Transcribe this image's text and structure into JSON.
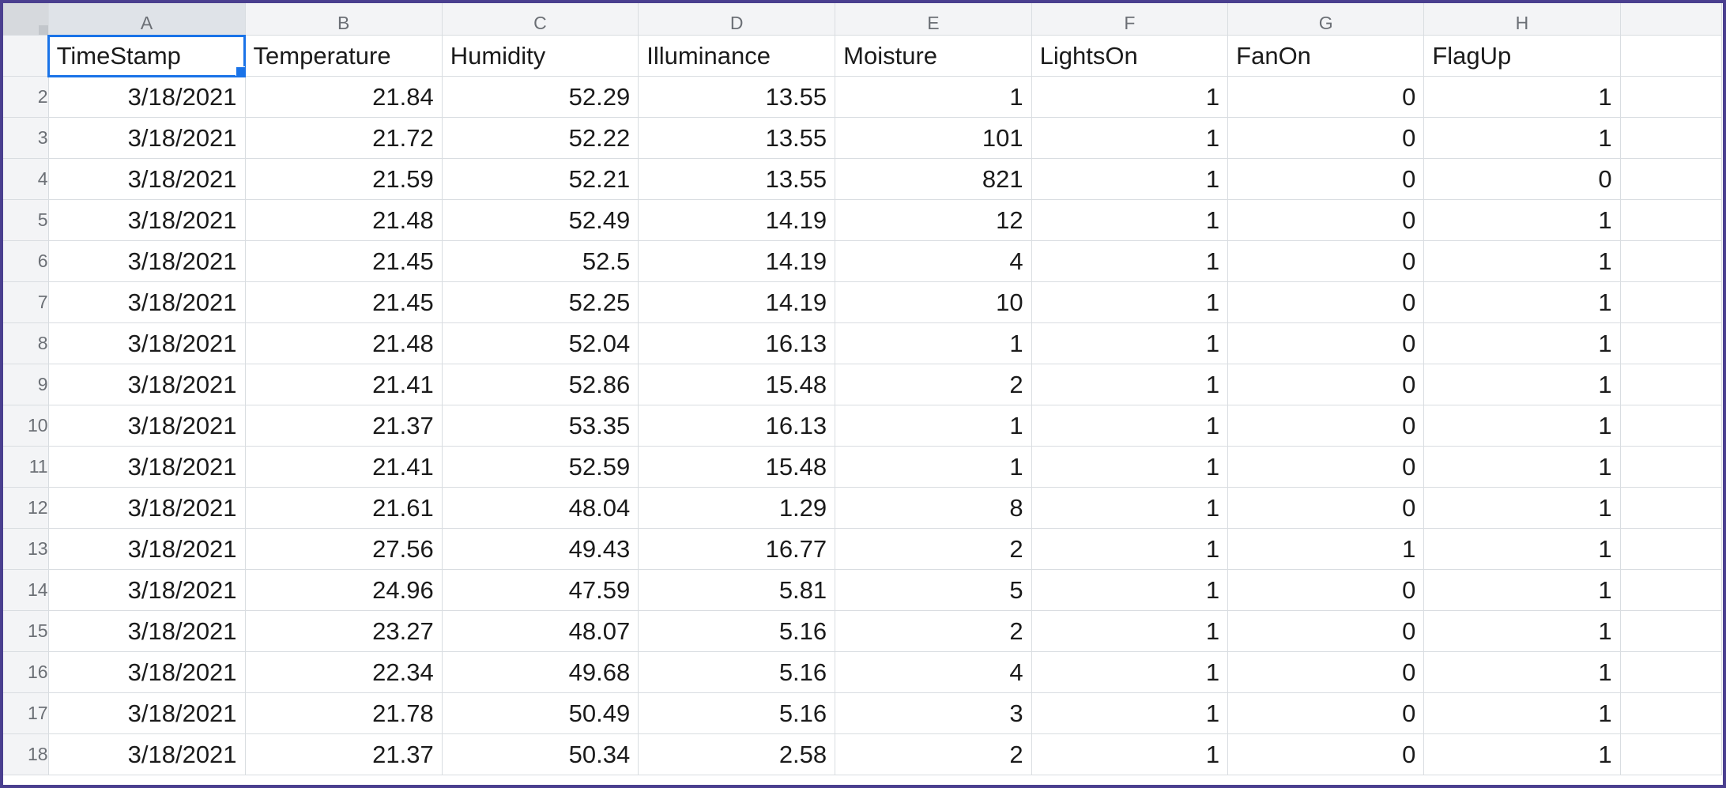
{
  "column_letters": [
    "A",
    "B",
    "C",
    "D",
    "E",
    "F",
    "G",
    "H"
  ],
  "row_numbers": [
    "2",
    "3",
    "4",
    "5",
    "6",
    "7",
    "8",
    "9",
    "10",
    "11",
    "12",
    "13",
    "14",
    "15",
    "16",
    "17",
    "18"
  ],
  "headers": [
    "TimeStamp",
    "Temperature",
    "Humidity",
    "Illuminance",
    "Moisture",
    "LightsOn",
    "FanOn",
    "FlagUp"
  ],
  "rows": [
    [
      "3/18/2021",
      "21.84",
      "52.29",
      "13.55",
      "1",
      "1",
      "0",
      "1"
    ],
    [
      "3/18/2021",
      "21.72",
      "52.22",
      "13.55",
      "101",
      "1",
      "0",
      "1"
    ],
    [
      "3/18/2021",
      "21.59",
      "52.21",
      "13.55",
      "821",
      "1",
      "0",
      "0"
    ],
    [
      "3/18/2021",
      "21.48",
      "52.49",
      "14.19",
      "12",
      "1",
      "0",
      "1"
    ],
    [
      "3/18/2021",
      "21.45",
      "52.5",
      "14.19",
      "4",
      "1",
      "0",
      "1"
    ],
    [
      "3/18/2021",
      "21.45",
      "52.25",
      "14.19",
      "10",
      "1",
      "0",
      "1"
    ],
    [
      "3/18/2021",
      "21.48",
      "52.04",
      "16.13",
      "1",
      "1",
      "0",
      "1"
    ],
    [
      "3/18/2021",
      "21.41",
      "52.86",
      "15.48",
      "2",
      "1",
      "0",
      "1"
    ],
    [
      "3/18/2021",
      "21.37",
      "53.35",
      "16.13",
      "1",
      "1",
      "0",
      "1"
    ],
    [
      "3/18/2021",
      "21.41",
      "52.59",
      "15.48",
      "1",
      "1",
      "0",
      "1"
    ],
    [
      "3/18/2021",
      "21.61",
      "48.04",
      "1.29",
      "8",
      "1",
      "0",
      "1"
    ],
    [
      "3/18/2021",
      "27.56",
      "49.43",
      "16.77",
      "2",
      "1",
      "1",
      "1"
    ],
    [
      "3/18/2021",
      "24.96",
      "47.59",
      "5.81",
      "5",
      "1",
      "0",
      "1"
    ],
    [
      "3/18/2021",
      "23.27",
      "48.07",
      "5.16",
      "2",
      "1",
      "0",
      "1"
    ],
    [
      "3/18/2021",
      "22.34",
      "49.68",
      "5.16",
      "4",
      "1",
      "0",
      "1"
    ],
    [
      "3/18/2021",
      "21.78",
      "50.49",
      "5.16",
      "3",
      "1",
      "0",
      "1"
    ],
    [
      "3/18/2021",
      "21.37",
      "50.34",
      "2.58",
      "2",
      "1",
      "0",
      "1"
    ]
  ],
  "colors": {
    "frame_border": "#4a3f8f",
    "selection": "#1a73e8",
    "gridline": "#d9dde1",
    "header_bg": "#f3f4f6"
  }
}
